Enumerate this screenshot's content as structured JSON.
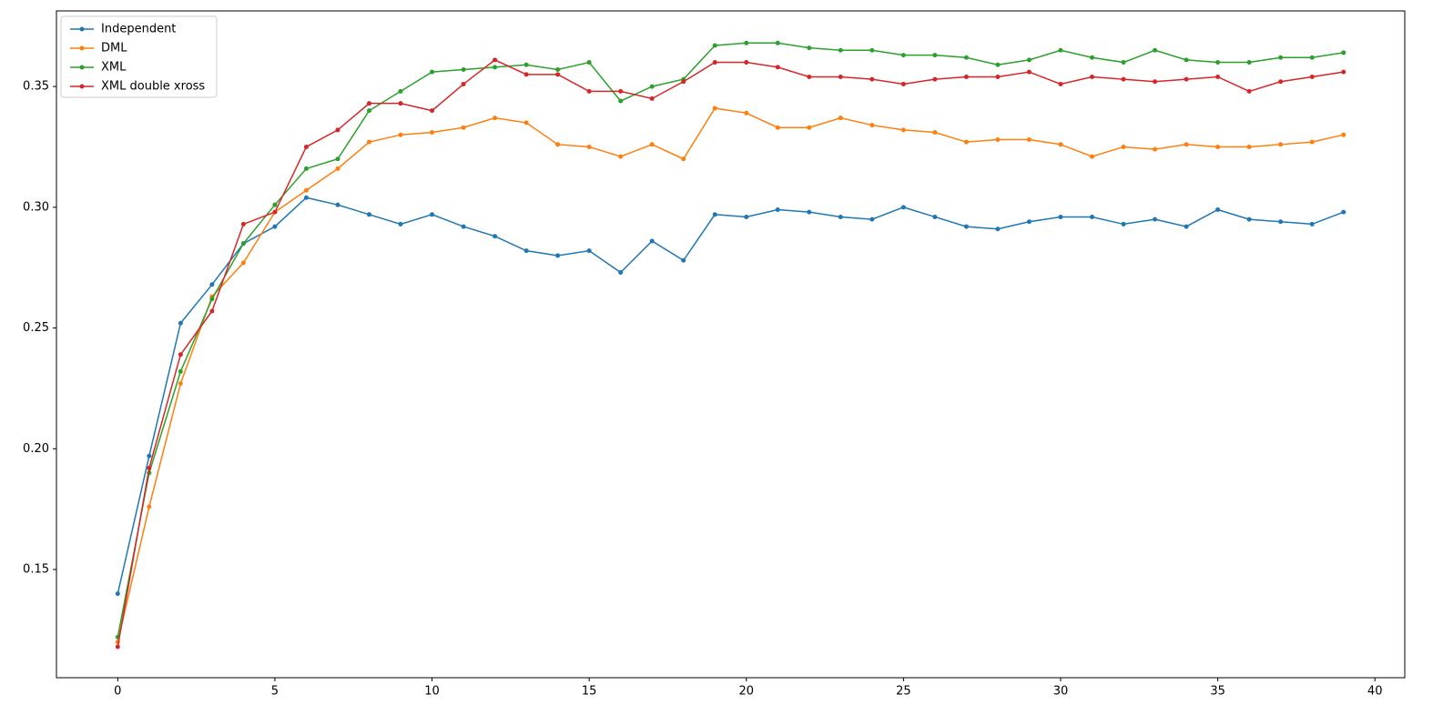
{
  "chart_data": {
    "type": "line",
    "x": [
      0,
      1,
      2,
      3,
      4,
      5,
      6,
      7,
      8,
      9,
      10,
      11,
      12,
      13,
      14,
      15,
      16,
      17,
      18,
      19,
      20,
      21,
      22,
      23,
      24,
      25,
      26,
      27,
      28,
      29,
      30,
      31,
      32,
      33,
      34,
      35,
      36,
      37,
      38,
      39
    ],
    "series": [
      {
        "name": "Independent",
        "color": "#1f77b4",
        "values": [
          0.14,
          0.197,
          0.252,
          0.268,
          0.285,
          0.292,
          0.304,
          0.301,
          0.297,
          0.293,
          0.297,
          0.292,
          0.288,
          0.282,
          0.28,
          0.282,
          0.273,
          0.286,
          0.278,
          0.297,
          0.296,
          0.299,
          0.298,
          0.296,
          0.295,
          0.3,
          0.296,
          0.292,
          0.291,
          0.294,
          0.296,
          0.296,
          0.293,
          0.295,
          0.292,
          0.299,
          0.295,
          0.294,
          0.293,
          0.298
        ]
      },
      {
        "name": "DML",
        "color": "#ff7f0e",
        "values": [
          0.12,
          0.176,
          0.227,
          0.263,
          0.277,
          0.298,
          0.307,
          0.316,
          0.327,
          0.33,
          0.331,
          0.333,
          0.337,
          0.335,
          0.326,
          0.325,
          0.321,
          0.326,
          0.32,
          0.341,
          0.339,
          0.333,
          0.333,
          0.337,
          0.334,
          0.332,
          0.331,
          0.327,
          0.328,
          0.328,
          0.326,
          0.321,
          0.325,
          0.324,
          0.326,
          0.325,
          0.325,
          0.326,
          0.327,
          0.33
        ]
      },
      {
        "name": "XML",
        "color": "#2ca02c",
        "values": [
          0.122,
          0.19,
          0.232,
          0.262,
          0.285,
          0.301,
          0.316,
          0.32,
          0.34,
          0.348,
          0.356,
          0.357,
          0.358,
          0.359,
          0.357,
          0.36,
          0.344,
          0.35,
          0.353,
          0.367,
          0.368,
          0.368,
          0.366,
          0.365,
          0.365,
          0.363,
          0.363,
          0.362,
          0.359,
          0.361,
          0.365,
          0.362,
          0.36,
          0.365,
          0.361,
          0.36,
          0.36,
          0.362,
          0.362,
          0.364
        ]
      },
      {
        "name": "XML double xross",
        "color": "#d62728",
        "values": [
          0.118,
          0.192,
          0.239,
          0.257,
          0.293,
          0.298,
          0.325,
          0.332,
          0.343,
          0.343,
          0.34,
          0.351,
          0.361,
          0.355,
          0.355,
          0.348,
          0.348,
          0.345,
          0.352,
          0.36,
          0.36,
          0.358,
          0.354,
          0.354,
          0.353,
          0.351,
          0.353,
          0.354,
          0.354,
          0.356,
          0.351,
          0.354,
          0.353,
          0.352,
          0.353,
          0.354,
          0.348,
          0.352,
          0.354,
          0.356
        ]
      }
    ],
    "xlim": [
      -1.95,
      40.95
    ],
    "xticks": [
      0,
      5,
      10,
      15,
      20,
      25,
      30,
      35,
      40
    ],
    "ylim": [
      0.1052,
      0.3813
    ],
    "yticks": [
      0.15,
      {
        "value": 0.2,
        "label": "0.20"
      },
      0.25,
      {
        "value": 0.3,
        "label": "0.30"
      },
      0.35
    ],
    "legend": "upper left",
    "grid": false
  }
}
